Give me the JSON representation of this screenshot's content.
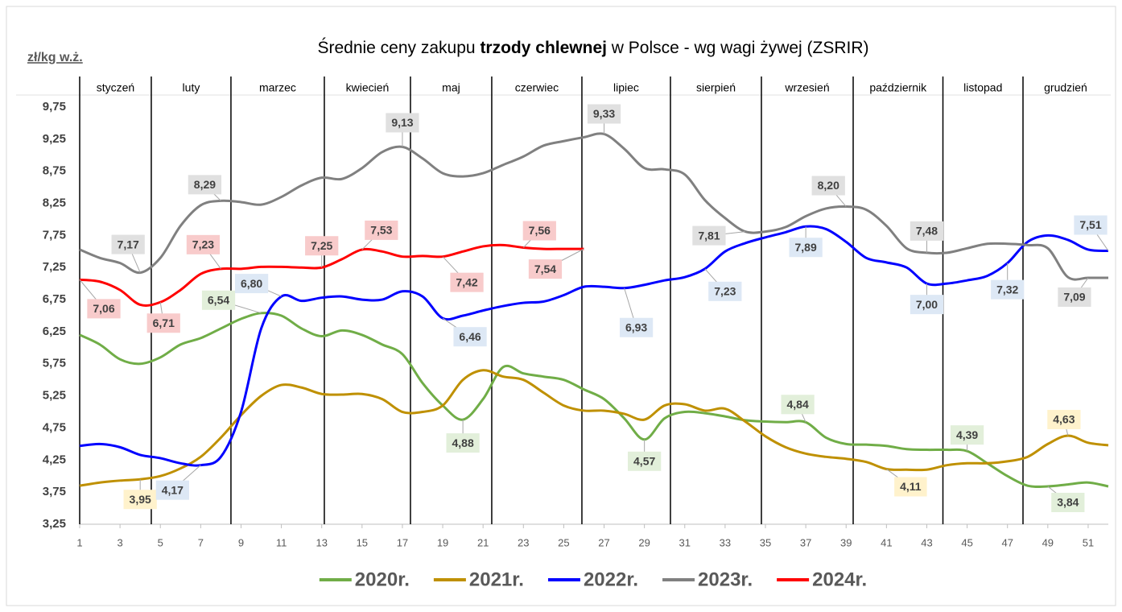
{
  "chart_data": {
    "type": "line",
    "title": [
      "Średnie ceny zakupu ",
      "trzody chlewnej",
      " w Polsce - wg wagi żywej (ZSRIR)"
    ],
    "y_unit": "zł/kg w.ż.",
    "months": [
      "styczeń",
      "luty",
      "marzec",
      "kwiecień",
      "maj",
      "czerwiec",
      "lipiec",
      "sierpień",
      "wrzesień",
      "październik",
      "listopad",
      "grudzień"
    ],
    "month_dividers": [
      4.55,
      8.5,
      13.13,
      17.4,
      21.43,
      25.9,
      30.29,
      34.8,
      39.35,
      43.8,
      47.77
    ],
    "x": [
      1,
      2,
      3,
      4,
      5,
      6,
      7,
      8,
      9,
      10,
      11,
      12,
      13,
      14,
      15,
      16,
      17,
      18,
      19,
      20,
      21,
      22,
      23,
      24,
      25,
      26,
      27,
      28,
      29,
      30,
      31,
      32,
      33,
      34,
      35,
      36,
      37,
      38,
      39,
      40,
      41,
      42,
      43,
      44,
      45,
      46,
      47,
      48,
      49,
      50,
      51,
      52
    ],
    "xlim": [
      1,
      52
    ],
    "xticks": [
      1,
      3,
      5,
      7,
      9,
      11,
      13,
      15,
      17,
      19,
      21,
      23,
      25,
      27,
      29,
      31,
      33,
      35,
      37,
      39,
      41,
      43,
      45,
      47,
      49,
      51
    ],
    "ylim": [
      3.25,
      9.75
    ],
    "yticks": [
      {
        "value": 3.25,
        "label": "3,25"
      },
      {
        "value": 3.75,
        "label": "3,75"
      },
      {
        "value": 4.25,
        "label": "4,25"
      },
      {
        "value": 4.75,
        "label": "4,75"
      },
      {
        "value": 5.25,
        "label": "5,25"
      },
      {
        "value": 5.75,
        "label": "5,75"
      },
      {
        "value": 6.25,
        "label": "6,25"
      },
      {
        "value": 6.75,
        "label": "6,75"
      },
      {
        "value": 7.25,
        "label": "7,25"
      },
      {
        "value": 7.75,
        "label": "7,75"
      },
      {
        "value": 8.25,
        "label": "8,25"
      },
      {
        "value": 8.75,
        "label": "8,75"
      },
      {
        "value": 9.25,
        "label": "9,25"
      },
      {
        "value": 9.75,
        "label": "9,75"
      }
    ],
    "grid": false,
    "legend": "bottom",
    "series": [
      {
        "name": "2020r.",
        "color": "#70ad47",
        "label_fill": "#e2efda",
        "values": [
          6.2,
          6.05,
          5.82,
          5.75,
          5.85,
          6.05,
          6.15,
          6.3,
          6.45,
          6.54,
          6.5,
          6.3,
          6.18,
          6.27,
          6.2,
          6.05,
          5.9,
          5.45,
          5.1,
          4.88,
          5.2,
          5.7,
          5.6,
          5.55,
          5.5,
          5.35,
          5.2,
          4.9,
          4.57,
          4.9,
          5.0,
          4.98,
          4.93,
          4.87,
          4.85,
          4.84,
          4.84,
          4.6,
          4.5,
          4.49,
          4.47,
          4.42,
          4.41,
          4.41,
          4.39,
          4.2,
          4.0,
          3.85,
          3.84,
          3.87,
          3.9,
          3.84
        ],
        "value_labels": [
          null,
          null,
          null,
          null,
          null,
          null,
          null,
          null,
          null,
          "6,54",
          null,
          null,
          null,
          null,
          null,
          null,
          null,
          null,
          null,
          "4,88",
          null,
          null,
          null,
          null,
          null,
          null,
          null,
          null,
          "4,57",
          null,
          null,
          null,
          null,
          null,
          null,
          null,
          "4,84",
          null,
          null,
          null,
          null,
          null,
          null,
          null,
          "4,39",
          null,
          null,
          null,
          "3,84",
          null,
          null,
          null
        ]
      },
      {
        "name": "2021r.",
        "color": "#bf9000",
        "label_fill": "#fff2cc",
        "values": [
          3.85,
          3.9,
          3.93,
          3.95,
          4.0,
          4.12,
          4.3,
          4.6,
          4.95,
          5.25,
          5.42,
          5.38,
          5.28,
          5.27,
          5.28,
          5.2,
          5.0,
          5.0,
          5.1,
          5.5,
          5.65,
          5.55,
          5.5,
          5.3,
          5.1,
          5.02,
          5.02,
          4.97,
          4.88,
          5.1,
          5.12,
          5.02,
          5.05,
          4.85,
          4.62,
          4.45,
          4.35,
          4.3,
          4.27,
          4.22,
          4.11,
          4.1,
          4.1,
          4.17,
          4.2,
          4.2,
          4.23,
          4.3,
          4.5,
          4.63,
          4.52,
          4.48
        ],
        "value_labels": [
          null,
          null,
          null,
          "3,95",
          null,
          null,
          null,
          null,
          null,
          null,
          null,
          null,
          null,
          null,
          null,
          null,
          null,
          null,
          null,
          null,
          null,
          null,
          null,
          null,
          null,
          null,
          null,
          null,
          null,
          null,
          null,
          null,
          null,
          null,
          null,
          null,
          null,
          null,
          null,
          null,
          "4,11",
          null,
          null,
          null,
          null,
          null,
          null,
          null,
          null,
          "4,63",
          null,
          null
        ]
      },
      {
        "name": "2022r.",
        "color": "#0000ff",
        "label_fill": "#dde8f5",
        "values": [
          4.47,
          4.5,
          4.45,
          4.33,
          4.28,
          4.2,
          4.17,
          4.3,
          5.0,
          6.3,
          6.8,
          6.73,
          6.78,
          6.8,
          6.75,
          6.75,
          6.88,
          6.8,
          6.46,
          6.5,
          6.58,
          6.65,
          6.7,
          6.72,
          6.82,
          6.95,
          6.95,
          6.93,
          6.98,
          7.05,
          7.1,
          7.23,
          7.5,
          7.63,
          7.72,
          7.8,
          7.89,
          7.85,
          7.65,
          7.4,
          7.33,
          7.25,
          7.0,
          7.0,
          7.05,
          7.12,
          7.32,
          7.65,
          7.75,
          7.68,
          7.53,
          7.51
        ],
        "value_labels": [
          null,
          null,
          null,
          null,
          null,
          null,
          "4,17",
          null,
          null,
          null,
          "6,80",
          null,
          null,
          null,
          null,
          null,
          null,
          null,
          "6,46",
          null,
          null,
          null,
          null,
          null,
          null,
          null,
          null,
          "6,93",
          null,
          null,
          null,
          "7,23",
          null,
          null,
          null,
          null,
          "7,89",
          null,
          null,
          null,
          null,
          null,
          "7,00",
          null,
          null,
          null,
          "7,32",
          null,
          null,
          null,
          null,
          "7,51"
        ]
      },
      {
        "name": "2023r.",
        "color": "#808080",
        "label_fill": "#e0e0e0",
        "values": [
          7.53,
          7.4,
          7.32,
          7.17,
          7.4,
          7.9,
          8.22,
          8.29,
          8.27,
          8.23,
          8.35,
          8.53,
          8.65,
          8.63,
          8.8,
          9.05,
          9.13,
          8.95,
          8.72,
          8.67,
          8.72,
          8.85,
          8.98,
          9.15,
          9.22,
          9.28,
          9.33,
          9.1,
          8.8,
          8.78,
          8.7,
          8.3,
          8.02,
          7.81,
          7.81,
          7.88,
          8.05,
          8.17,
          8.2,
          8.15,
          7.9,
          7.55,
          7.48,
          7.48,
          7.55,
          7.62,
          7.62,
          7.6,
          7.55,
          7.1,
          7.09,
          7.09
        ],
        "value_labels": [
          null,
          null,
          null,
          "7,17",
          null,
          null,
          null,
          "8,29",
          null,
          null,
          null,
          null,
          null,
          null,
          null,
          null,
          "9,13",
          null,
          null,
          null,
          null,
          null,
          null,
          null,
          null,
          null,
          "9,33",
          null,
          null,
          null,
          null,
          null,
          null,
          "7,81",
          null,
          null,
          null,
          null,
          "8,20",
          null,
          null,
          null,
          "7,48",
          null,
          null,
          null,
          null,
          null,
          null,
          null,
          "7,09",
          null
        ]
      },
      {
        "name": "2024r.",
        "color": "#ff0000",
        "label_fill": "#f8cbcb",
        "values": [
          7.06,
          7.03,
          6.9,
          6.67,
          6.71,
          6.9,
          7.15,
          7.23,
          7.23,
          7.26,
          7.26,
          7.25,
          7.25,
          7.38,
          7.53,
          7.5,
          7.42,
          7.43,
          7.42,
          7.5,
          7.58,
          7.6,
          7.56,
          7.54,
          7.54,
          7.54,
          null,
          null,
          null,
          null,
          null,
          null,
          null,
          null,
          null,
          null,
          null,
          null,
          null,
          null,
          null,
          null,
          null,
          null,
          null,
          null,
          null,
          null,
          null,
          null,
          null,
          null
        ],
        "value_labels": [
          "7,06",
          null,
          null,
          null,
          "6,71",
          null,
          null,
          "7,23",
          null,
          null,
          null,
          null,
          "7,25",
          null,
          "7,53",
          null,
          null,
          null,
          "7,42",
          null,
          null,
          null,
          "7,56",
          null,
          null,
          "7,54",
          null,
          null,
          null,
          null,
          null,
          null,
          null,
          null,
          null,
          null,
          null,
          null,
          null,
          null,
          null,
          null,
          null,
          null,
          null,
          null,
          null,
          null,
          null,
          null,
          null,
          null
        ]
      }
    ]
  }
}
